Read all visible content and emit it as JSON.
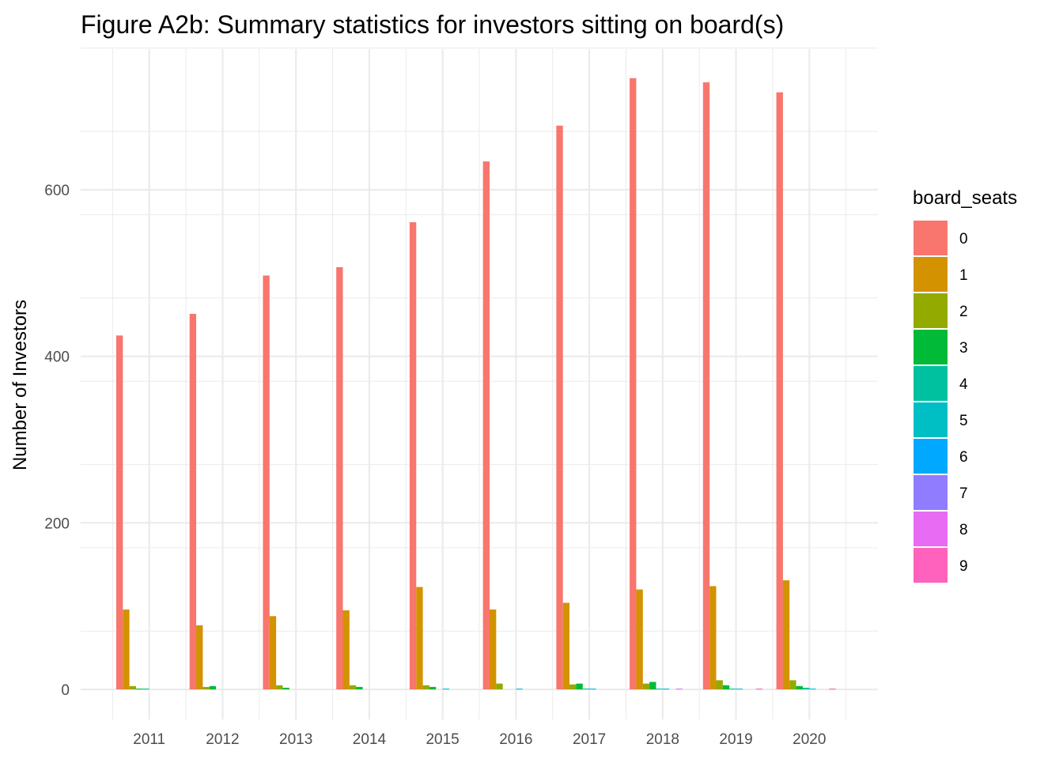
{
  "chart_data": {
    "type": "bar",
    "title": "Figure A2b: Summary statistics for investors sitting on board(s)",
    "xlabel": "",
    "ylabel": "Number of Investors",
    "categories": [
      "2011",
      "2012",
      "2013",
      "2014",
      "2015",
      "2016",
      "2017",
      "2018",
      "2019",
      "2020"
    ],
    "ylim": [
      -30,
      770
    ],
    "yticks": [
      0,
      200,
      400,
      600
    ],
    "grid": true,
    "legend_position": "right",
    "legend_title": "board_seats",
    "series": [
      {
        "name": "0",
        "color": "#F8766D",
        "values": [
          425,
          451,
          497,
          507,
          561,
          634,
          677,
          734,
          729,
          717
        ]
      },
      {
        "name": "1",
        "color": "#D39200",
        "values": [
          96,
          77,
          88,
          95,
          123,
          96,
          104,
          120,
          124,
          131
        ]
      },
      {
        "name": "2",
        "color": "#93AA00",
        "values": [
          4,
          3,
          5,
          5,
          5,
          7,
          6,
          7,
          11,
          11
        ]
      },
      {
        "name": "3",
        "color": "#00BA38",
        "values": [
          1,
          4,
          2,
          3,
          3,
          0,
          7,
          9,
          5,
          4
        ]
      },
      {
        "name": "4",
        "color": "#00C19F",
        "values": [
          1,
          0,
          0,
          0,
          0,
          0,
          1,
          1,
          1,
          2
        ]
      },
      {
        "name": "5",
        "color": "#00B9E3",
        "values": [
          0,
          0,
          0,
          0,
          1,
          1,
          1,
          1,
          1,
          1
        ]
      },
      {
        "name": "6",
        "color": "#619CFF",
        "values": [
          0,
          0,
          0,
          0,
          0,
          0,
          0,
          0,
          0,
          0
        ]
      },
      {
        "name": "7",
        "color": "#DB72FB",
        "values": [
          0,
          0,
          0,
          0,
          0,
          0,
          0,
          1,
          0,
          0
        ]
      },
      {
        "name": "8",
        "color": "#FF61C3",
        "values": [
          0,
          0,
          0,
          0,
          0,
          0,
          0,
          0,
          1,
          1
        ]
      },
      {
        "name": "9",
        "color": "#FF61C3",
        "values": [
          0,
          0,
          0,
          0,
          0,
          0,
          0,
          0,
          0,
          0
        ]
      }
    ],
    "legend_swatch_colors": [
      "#F8766D",
      "#D39200",
      "#93AA00",
      "#00BA38",
      "#00C19F",
      "#00BFC4",
      "#00A9FF",
      "#8F7CFF",
      "#E76BF3",
      "#FF62BC"
    ]
  }
}
